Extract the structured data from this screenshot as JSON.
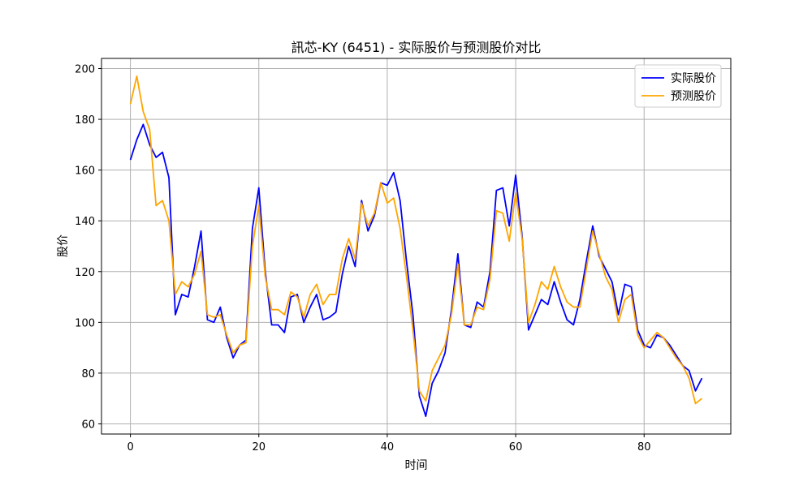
{
  "chart_data": {
    "type": "line",
    "title": "訊芯-KY (6451) - 实际股价与预测股价对比",
    "xlabel": "时间",
    "ylabel": "股价",
    "xlim": [
      -4.5,
      93.5
    ],
    "ylim": [
      56,
      204
    ],
    "xticks": [
      0,
      20,
      40,
      60,
      80
    ],
    "yticks": [
      60,
      80,
      100,
      120,
      140,
      160,
      180,
      200
    ],
    "grid": true,
    "legend_position": "upper right",
    "x": [
      0,
      1,
      2,
      3,
      4,
      5,
      6,
      7,
      8,
      9,
      10,
      11,
      12,
      13,
      14,
      15,
      16,
      17,
      18,
      19,
      20,
      21,
      22,
      23,
      24,
      25,
      26,
      27,
      28,
      29,
      30,
      31,
      32,
      33,
      34,
      35,
      36,
      37,
      38,
      39,
      40,
      41,
      42,
      43,
      44,
      45,
      46,
      47,
      48,
      49,
      50,
      51,
      52,
      53,
      54,
      55,
      56,
      57,
      58,
      59,
      60,
      61,
      62,
      63,
      64,
      65,
      66,
      67,
      68,
      69,
      70,
      71,
      72,
      73,
      74,
      75,
      76,
      77,
      78,
      79,
      80,
      81,
      82,
      83,
      84,
      85,
      86,
      87,
      88,
      89
    ],
    "series": [
      {
        "name": "实际股价",
        "color": "#0000ff",
        "values": [
          164,
          172,
          178,
          170,
          165,
          167,
          157,
          103,
          111,
          110,
          122,
          136,
          101,
          100,
          106,
          94,
          86,
          91,
          93,
          137,
          153,
          120,
          99,
          99,
          96,
          110,
          111,
          100,
          106,
          111,
          101,
          102,
          104,
          119,
          130,
          122,
          148,
          136,
          142,
          155,
          154,
          159,
          148,
          124,
          103,
          71,
          63,
          76,
          81,
          88,
          105,
          127,
          99,
          98,
          108,
          106,
          120,
          152,
          153,
          138,
          158,
          134,
          97,
          103,
          109,
          107,
          116,
          108,
          101,
          99,
          109,
          124,
          138,
          126,
          121,
          116,
          103,
          115,
          114,
          97,
          91,
          90,
          95,
          94,
          91,
          87,
          83,
          81,
          73,
          78
        ]
      },
      {
        "name": "预测股价",
        "color": "#ffa500",
        "values": [
          186,
          197,
          183,
          176,
          146,
          148,
          140,
          111,
          116,
          114,
          119,
          128,
          103,
          102,
          103,
          95,
          88,
          91,
          92,
          130,
          146,
          118,
          105,
          105,
          103,
          112,
          110,
          102,
          111,
          115,
          107,
          111,
          111,
          125,
          133,
          125,
          147,
          138,
          143,
          155,
          147,
          149,
          137,
          118,
          97,
          73,
          69,
          81,
          86,
          91,
          103,
          123,
          99,
          99,
          106,
          105,
          117,
          144,
          143,
          132,
          151,
          133,
          100,
          107,
          116,
          113,
          122,
          114,
          108,
          106,
          106,
          121,
          136,
          127,
          118,
          113,
          100,
          109,
          111,
          95,
          90,
          93,
          96,
          94,
          90,
          86,
          83,
          78,
          68,
          70
        ]
      }
    ]
  }
}
